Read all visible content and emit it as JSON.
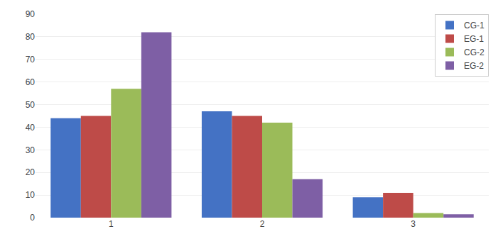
{
  "chart_data": {
    "type": "bar",
    "categories": [
      "1",
      "2",
      "3"
    ],
    "series": [
      {
        "name": "CG-1",
        "color": "#4472C4",
        "values": [
          44,
          47,
          9
        ]
      },
      {
        "name": "EG-1",
        "color": "#BE4B48",
        "values": [
          45,
          45,
          11
        ]
      },
      {
        "name": "CG-2",
        "color": "#9BBB59",
        "values": [
          57,
          42,
          2
        ]
      },
      {
        "name": "EG-2",
        "color": "#7E5FA5",
        "values": [
          82,
          17,
          1.5
        ]
      }
    ],
    "ylim": [
      0,
      90
    ],
    "yticks": [
      0,
      10,
      20,
      30,
      40,
      50,
      60,
      70,
      80,
      90
    ],
    "grid": true,
    "legend": "upper right"
  }
}
